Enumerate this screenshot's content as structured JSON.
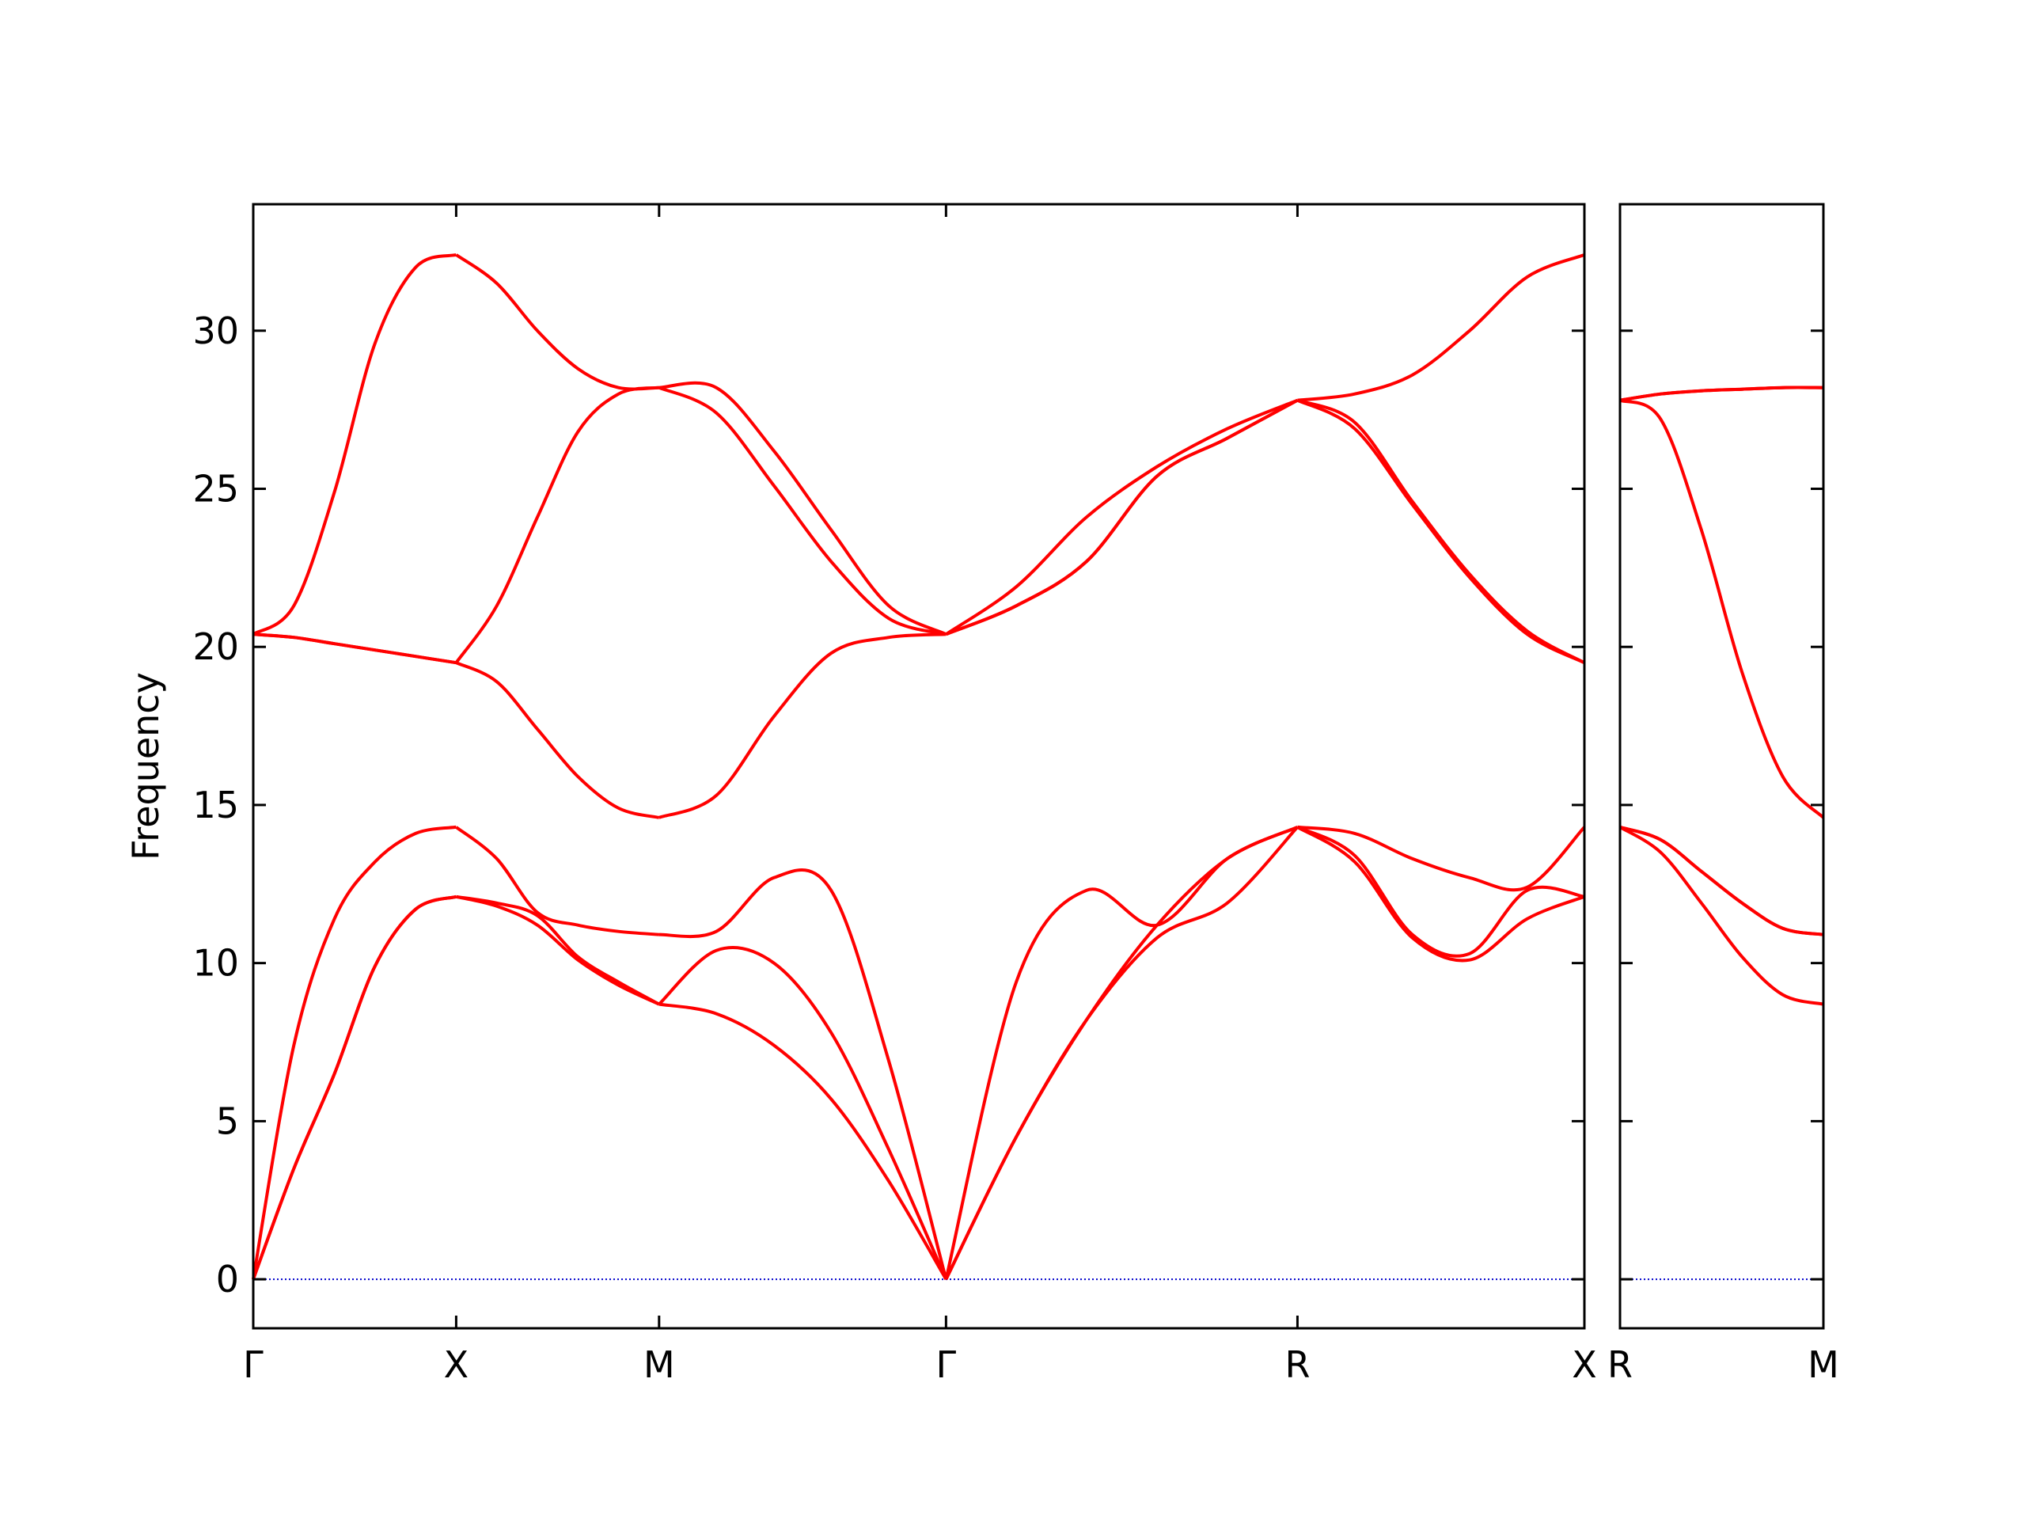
{
  "chart_data": [
    {
      "type": "line",
      "ylabel": "Frequency",
      "x": [
        0,
        0.1,
        0.2,
        0.3,
        0.4,
        0.5,
        0.6,
        0.7,
        0.8,
        0.9,
        1.0,
        1.141,
        1.283,
        1.424,
        1.566,
        1.707,
        1.88,
        2.053,
        2.227,
        2.4,
        2.573,
        2.714,
        2.856,
        2.997,
        3.139,
        3.28
      ],
      "xlim": [
        0,
        3.28
      ],
      "xticks": [
        {
          "value": 0,
          "label": "Γ"
        },
        {
          "value": 0.5,
          "label": "X"
        },
        {
          "value": 1.0,
          "label": "M"
        },
        {
          "value": 1.707,
          "label": "Γ"
        },
        {
          "value": 2.573,
          "label": "R"
        },
        {
          "value": 3.28,
          "label": "X"
        }
      ],
      "ylim": [
        -1.55,
        34
      ],
      "yticks": [
        0,
        5,
        10,
        15,
        20,
        25,
        30
      ],
      "ytick_labels": true,
      "hlines": [
        {
          "value": 0,
          "color": "#0000cc",
          "style": "dotted"
        }
      ],
      "series": [
        {
          "color": "#ff0000",
          "values": [
            0,
            3.5,
            6.5,
            9.9,
            11.7,
            12.1,
            11.8,
            11.2,
            10.1,
            9.3,
            8.7,
            8.4,
            7.4,
            5.7,
            3.1,
            0,
            4.5,
            8.2,
            10.8,
            11.9,
            14.3,
            13.2,
            10.8,
            10.1,
            11.4,
            12.1
          ]
        },
        {
          "color": "#ff0000",
          "values": [
            0,
            3.5,
            6.5,
            9.9,
            11.7,
            12.1,
            11.9,
            11.5,
            10.2,
            9.4,
            8.7,
            10.4,
            10.0,
            7.8,
            4.1,
            0,
            4.5,
            8.2,
            11.2,
            13.3,
            14.3,
            13.4,
            10.9,
            10.3,
            12.3,
            12.1
          ]
        },
        {
          "color": "#ff0000",
          "values": [
            0,
            7.4,
            11.4,
            13.2,
            14.1,
            14.3,
            13.3,
            11.6,
            11.2,
            11.0,
            10.9,
            11.0,
            12.7,
            12.3,
            6.9,
            0,
            9.4,
            12.3,
            11.2,
            13.3,
            14.3,
            14.1,
            13.3,
            12.7,
            12.4,
            14.3
          ]
        },
        {
          "color": "#ff0000",
          "values": [
            20.4,
            20.3,
            20.1,
            19.9,
            19.7,
            19.5,
            18.9,
            17.4,
            15.9,
            14.9,
            14.6,
            15.3,
            17.8,
            19.8,
            20.3,
            20.4,
            21.3,
            22.7,
            25.4,
            26.6,
            27.8,
            26.9,
            24.5,
            22.2,
            20.4,
            19.5
          ]
        },
        {
          "color": "#ff0000",
          "values": [
            20.4,
            20.3,
            20.1,
            19.9,
            19.7,
            19.5,
            21.3,
            24.1,
            26.8,
            28.0,
            28.2,
            27.4,
            25.1,
            22.7,
            20.9,
            20.4,
            21.3,
            22.7,
            25.4,
            26.6,
            27.8,
            27.1,
            24.6,
            22.3,
            20.5,
            19.5
          ]
        },
        {
          "color": "#ff0000",
          "values": [
            20.4,
            21.3,
            24.9,
            29.6,
            32.0,
            32.4,
            31.5,
            30.0,
            28.8,
            28.2,
            28.2,
            28.2,
            26.2,
            23.7,
            21.3,
            20.4,
            21.9,
            24.1,
            25.7,
            26.9,
            27.8,
            28.0,
            28.6,
            30.0,
            31.7,
            32.4
          ]
        }
      ]
    },
    {
      "type": "line",
      "x": [
        3.28,
        3.38,
        3.48,
        3.58,
        3.68,
        3.78
      ],
      "xlim": [
        3.28,
        3.78
      ],
      "xticks": [
        {
          "value": 3.28,
          "label": "R"
        },
        {
          "value": 3.78,
          "label": "M"
        }
      ],
      "ylim": [
        -1.55,
        34
      ],
      "yticks": [
        0,
        5,
        10,
        15,
        20,
        25,
        30
      ],
      "ytick_labels": false,
      "hlines": [
        {
          "value": 0,
          "color": "#0000cc",
          "style": "dotted"
        }
      ],
      "series": [
        {
          "color": "#ff0000",
          "values": [
            14.3,
            13.5,
            11.9,
            10.2,
            9.0,
            8.7
          ]
        },
        {
          "color": "#ff0000",
          "values": [
            14.3,
            13.9,
            12.9,
            11.9,
            11.1,
            10.9
          ]
        },
        {
          "color": "#ff0000",
          "values": [
            14.3,
            13.9,
            12.9,
            11.9,
            11.1,
            10.9
          ]
        },
        {
          "color": "#ff0000",
          "values": [
            27.8,
            27.2,
            23.7,
            19.2,
            15.9,
            14.6
          ]
        },
        {
          "color": "#ff0000",
          "values": [
            27.8,
            28.0,
            28.1,
            28.15,
            28.2,
            28.2
          ]
        },
        {
          "color": "#ff0000",
          "values": [
            27.8,
            28.0,
            28.1,
            28.15,
            28.2,
            28.2
          ]
        }
      ]
    }
  ]
}
